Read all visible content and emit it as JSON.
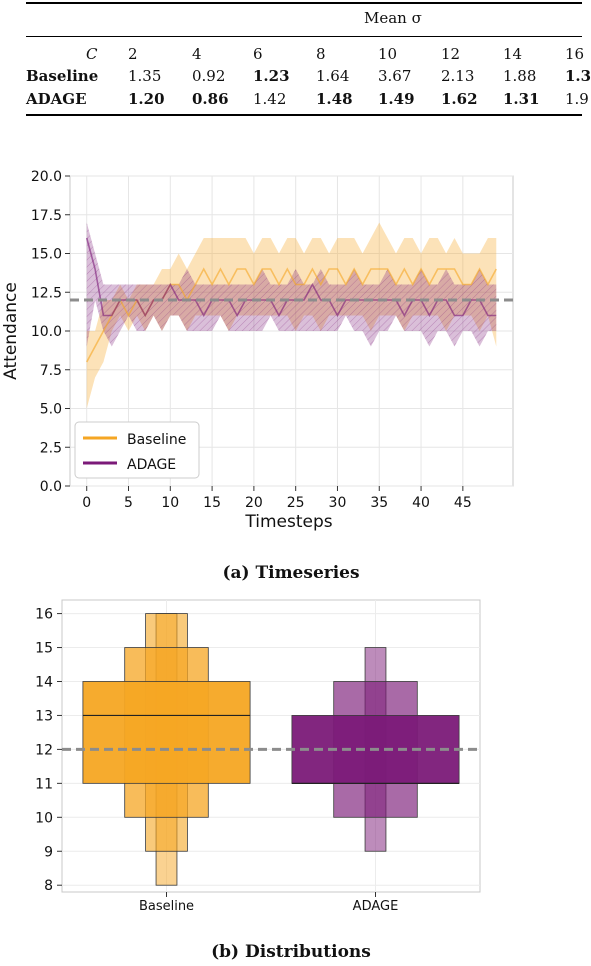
{
  "table": {
    "header": "Mean σ",
    "c_label": "C",
    "columns": [
      "2",
      "4",
      "6",
      "8",
      "10",
      "12",
      "14",
      "16"
    ],
    "rows": [
      {
        "name": "Baseline",
        "values": [
          "1.35",
          "0.92",
          "1.23",
          "1.64",
          "3.67",
          "2.13",
          "1.88",
          "1.3"
        ],
        "bold": [
          false,
          false,
          true,
          false,
          false,
          false,
          false,
          true
        ]
      },
      {
        "name": "ADAGE",
        "values": [
          "1.20",
          "0.86",
          "1.42",
          "1.48",
          "1.49",
          "1.62",
          "1.31",
          "1.9"
        ],
        "bold": [
          true,
          true,
          false,
          true,
          true,
          true,
          true,
          false
        ]
      }
    ]
  },
  "captions": {
    "a": "(a) Timeseries",
    "b": "(b) Distributions"
  },
  "colors": {
    "baseline": "#f5a623",
    "adage": "#7b1a78",
    "reference": "#8c8c8c"
  },
  "chart_data": [
    {
      "type": "line",
      "xlabel": "Timesteps",
      "ylabel": "Attendance",
      "xlim": [
        -2,
        51
      ],
      "ylim": [
        0,
        20
      ],
      "xticks": [
        0,
        5,
        10,
        15,
        20,
        25,
        30,
        35,
        40,
        45
      ],
      "yticks": [
        "0.0",
        "2.5",
        "5.0",
        "7.5",
        "10.0",
        "12.5",
        "15.0",
        "17.5",
        "20.0"
      ],
      "reference_line": 12,
      "legend": {
        "position": "bottom-left"
      },
      "grid": true,
      "series": [
        {
          "name": "Baseline",
          "x": [
            0,
            1,
            2,
            3,
            4,
            5,
            6,
            7,
            8,
            9,
            10,
            11,
            12,
            13,
            14,
            15,
            16,
            17,
            18,
            19,
            20,
            21,
            22,
            23,
            24,
            25,
            26,
            27,
            28,
            29,
            30,
            31,
            32,
            33,
            34,
            35,
            36,
            37,
            38,
            39,
            40,
            41,
            42,
            43,
            44,
            45,
            46,
            47,
            48,
            49
          ],
          "lower": [
            5,
            7,
            8,
            10,
            11,
            10,
            11,
            10,
            11,
            10,
            11,
            11,
            10,
            11,
            11,
            11,
            11,
            10,
            11,
            11,
            11,
            11,
            11,
            11,
            11,
            10,
            11,
            11,
            10,
            11,
            11,
            11,
            11,
            11,
            10,
            11,
            11,
            11,
            10,
            11,
            11,
            11,
            11,
            10,
            11,
            11,
            11,
            10,
            11,
            9
          ],
          "upper": [
            10,
            10,
            12,
            12,
            13,
            12,
            13,
            13,
            13,
            14,
            14,
            15,
            14,
            15,
            16,
            16,
            16,
            16,
            16,
            16,
            15,
            16,
            16,
            15,
            16,
            16,
            15,
            16,
            16,
            15,
            16,
            16,
            16,
            15,
            16,
            17,
            16,
            15,
            16,
            16,
            15,
            16,
            16,
            15,
            16,
            15,
            15,
            15,
            16,
            16
          ],
          "values": [
            8,
            9,
            10,
            11,
            12,
            11,
            12,
            11,
            12,
            12,
            13,
            13,
            12,
            13,
            14,
            13,
            14,
            13,
            14,
            14,
            13,
            14,
            14,
            13,
            14,
            13,
            13,
            14,
            13,
            14,
            14,
            13,
            14,
            13,
            14,
            14,
            14,
            13,
            14,
            13,
            14,
            13,
            14,
            14,
            14,
            13,
            13,
            14,
            13,
            14
          ]
        },
        {
          "name": "ADAGE",
          "x": [
            0,
            1,
            2,
            3,
            4,
            5,
            6,
            7,
            8,
            9,
            10,
            11,
            12,
            13,
            14,
            15,
            16,
            17,
            18,
            19,
            20,
            21,
            22,
            23,
            24,
            25,
            26,
            27,
            28,
            29,
            30,
            31,
            32,
            33,
            34,
            35,
            36,
            37,
            38,
            39,
            40,
            41,
            42,
            43,
            44,
            45,
            46,
            47,
            48,
            49
          ],
          "lower": [
            9,
            12,
            10,
            9,
            10,
            11,
            10,
            10,
            11,
            10,
            11,
            11,
            10,
            10,
            10,
            10,
            11,
            10,
            10,
            10,
            10,
            10,
            11,
            10,
            10,
            10,
            10,
            10,
            10,
            10,
            10,
            11,
            10,
            10,
            9,
            10,
            10,
            11,
            10,
            10,
            10,
            9,
            10,
            10,
            9,
            10,
            10,
            9,
            10,
            10
          ],
          "upper": [
            17,
            15,
            13,
            13,
            13,
            13,
            13,
            13,
            13,
            13,
            13,
            13,
            14,
            13,
            13,
            13,
            13,
            13,
            13,
            13,
            13,
            14,
            13,
            13,
            13,
            14,
            13,
            13,
            14,
            13,
            13,
            13,
            14,
            13,
            13,
            13,
            14,
            13,
            13,
            13,
            14,
            13,
            13,
            14,
            13,
            13,
            13,
            14,
            13,
            13
          ],
          "values": [
            16,
            14,
            11,
            11,
            12,
            12,
            12,
            11,
            12,
            12,
            13,
            12,
            12,
            12,
            11,
            12,
            12,
            12,
            11,
            12,
            12,
            12,
            12,
            11,
            12,
            12,
            12,
            13,
            12,
            12,
            11,
            12,
            12,
            12,
            12,
            12,
            12,
            12,
            11,
            12,
            12,
            11,
            12,
            12,
            11,
            11,
            12,
            12,
            11,
            11
          ]
        }
      ]
    },
    {
      "type": "boxen",
      "categories": [
        "Baseline",
        "ADAGE"
      ],
      "ylim": [
        7.8,
        16.4
      ],
      "yticks": [
        8,
        9,
        10,
        11,
        12,
        13,
        14,
        15,
        16
      ],
      "reference_line": 12,
      "grid": true,
      "series": [
        {
          "name": "Baseline",
          "median": 13,
          "levels": [
            {
              "low": 11,
              "high": 14,
              "rel_width": 1.0
            },
            {
              "low": 10,
              "high": 15,
              "rel_width": 0.5
            },
            {
              "low": 9,
              "high": 16,
              "rel_width": 0.25
            },
            {
              "low": 8,
              "high": 16,
              "rel_width": 0.125
            }
          ]
        },
        {
          "name": "ADAGE",
          "median": 11,
          "levels": [
            {
              "low": 11,
              "high": 13,
              "rel_width": 1.0
            },
            {
              "low": 10,
              "high": 14,
              "rel_width": 0.5
            },
            {
              "low": 9,
              "high": 15,
              "rel_width": 0.125
            }
          ]
        }
      ]
    }
  ]
}
